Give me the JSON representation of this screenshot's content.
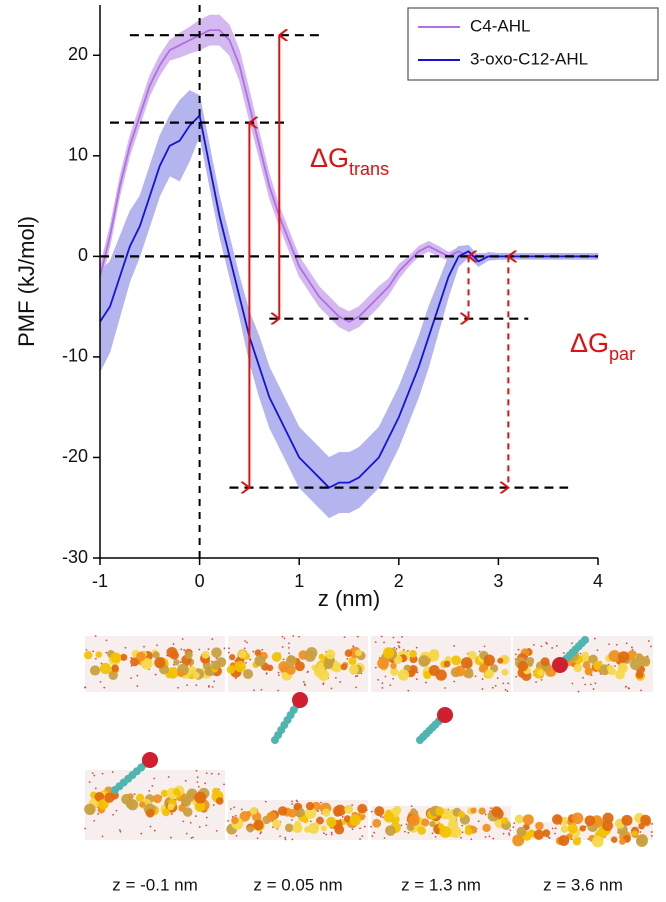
{
  "chart_data": {
    "type": "line",
    "xlabel": "z (nm)",
    "ylabel": "PMF (kJ/mol)",
    "xlim": [
      -1,
      4
    ],
    "ylim": [
      -30,
      25
    ],
    "xticks": [
      -1,
      0,
      1,
      2,
      3,
      4
    ],
    "yticks": [
      -30,
      -20,
      -10,
      0,
      10,
      20
    ],
    "legend": "upper right",
    "x": [
      -1,
      -0.9,
      -0.8,
      -0.7,
      -0.6,
      -0.5,
      -0.4,
      -0.3,
      -0.2,
      -0.1,
      0,
      0.1,
      0.2,
      0.3,
      0.4,
      0.5,
      0.6,
      0.7,
      0.8,
      0.9,
      1,
      1.1,
      1.2,
      1.3,
      1.4,
      1.5,
      1.6,
      1.7,
      1.8,
      1.9,
      2,
      2.1,
      2.2,
      2.3,
      2.4,
      2.5,
      2.6,
      2.7,
      2.8,
      2.9,
      3,
      3.1,
      3.2,
      3.3,
      3.4,
      3.5,
      3.6,
      3.7,
      3.8,
      3.9,
      4
    ],
    "series": [
      {
        "name": "C4-AHL",
        "color": "#b070e0",
        "band_color": "#d4b8f0",
        "values": [
          -2,
          2,
          7,
          11,
          14,
          17,
          19,
          20.5,
          21,
          21.5,
          22,
          22.5,
          22.5,
          21.5,
          19,
          15,
          11,
          7,
          4,
          1.5,
          -1,
          -2.5,
          -4,
          -5,
          -6,
          -6.5,
          -6,
          -5,
          -4,
          -3,
          -1.5,
          -0.5,
          0.5,
          1,
          0.5,
          0,
          0.5,
          0,
          0,
          0,
          0,
          0,
          0,
          0,
          0,
          0,
          0,
          0,
          0,
          0,
          0
        ],
        "errors": [
          1,
          1,
          1,
          1,
          1,
          1,
          1,
          1,
          1.2,
          1.3,
          1.5,
          1.5,
          1.5,
          1.5,
          1.5,
          1.5,
          1.3,
          1.2,
          1,
          1,
          1,
          1,
          1,
          1,
          1,
          1,
          1,
          1,
          1,
          0.8,
          0.7,
          0.5,
          0.5,
          0.5,
          0.5,
          0.4,
          0.4,
          0.3,
          0.3,
          0.3,
          0.3,
          0.3,
          0.3,
          0.3,
          0.3,
          0.3,
          0.3,
          0.3,
          0.3,
          0.3,
          0.3
        ]
      },
      {
        "name": "3-oxo-C12-AHL",
        "color": "#1414d2",
        "band_color": "#b4b4ee",
        "values": [
          -6.5,
          -5,
          -2,
          1,
          3,
          6,
          9,
          11,
          11.5,
          13,
          14,
          9,
          4,
          0,
          -4,
          -8,
          -11,
          -14,
          -16,
          -18,
          -20,
          -21,
          -22,
          -23,
          -22.5,
          -22.5,
          -22,
          -21,
          -20,
          -18,
          -16,
          -13.5,
          -11,
          -8,
          -5,
          -2,
          0,
          0.5,
          -0.5,
          0,
          0,
          0,
          0,
          0,
          0,
          0,
          0,
          0,
          0,
          0,
          0
        ],
        "errors": [
          5,
          4.5,
          4,
          3.5,
          3,
          3,
          3,
          3,
          4,
          3.5,
          2,
          2,
          2,
          2,
          2,
          2.5,
          3,
          3,
          3,
          3,
          3,
          3,
          3,
          3,
          3,
          3,
          3,
          3,
          3,
          3,
          3,
          3,
          3,
          3,
          2.5,
          2,
          1,
          0.6,
          0.5,
          0.4,
          0.3,
          0.3,
          0.3,
          0.3,
          0.3,
          0.3,
          0.3,
          0.3,
          0.3,
          0.3,
          0.3
        ]
      }
    ],
    "hlines": [
      {
        "y": 22,
        "x": [
          -0.7,
          1.2
        ]
      },
      {
        "y": 13.3,
        "x": [
          -0.9,
          0.9
        ]
      },
      {
        "y": 0,
        "x": [
          -1,
          4
        ]
      },
      {
        "y": -6.2,
        "x": [
          0.7,
          3.3
        ]
      },
      {
        "y": -23,
        "x": [
          0.3,
          3.7
        ]
      }
    ],
    "vline": 0,
    "arrows": [
      {
        "x": 0.8,
        "y": [
          22,
          -6.2
        ],
        "dashed": false
      },
      {
        "x": 0.5,
        "y": [
          13.3,
          -23
        ],
        "dashed": false
      },
      {
        "x": 2.7,
        "y": [
          0,
          -6.2
        ],
        "dashed": true
      },
      {
        "x": 3.1,
        "y": [
          0,
          -23
        ],
        "dashed": true
      }
    ],
    "annotations": [
      {
        "text": "ΔG",
        "sub": "trans"
      },
      {
        "text": "ΔG",
        "sub": "par"
      }
    ],
    "snapshots": [
      {
        "caption": "z = -0.1 nm"
      },
      {
        "caption": "z = 0.05 nm"
      },
      {
        "caption": "z = 1.3 nm"
      },
      {
        "caption": "z = 3.6 nm"
      }
    ]
  }
}
